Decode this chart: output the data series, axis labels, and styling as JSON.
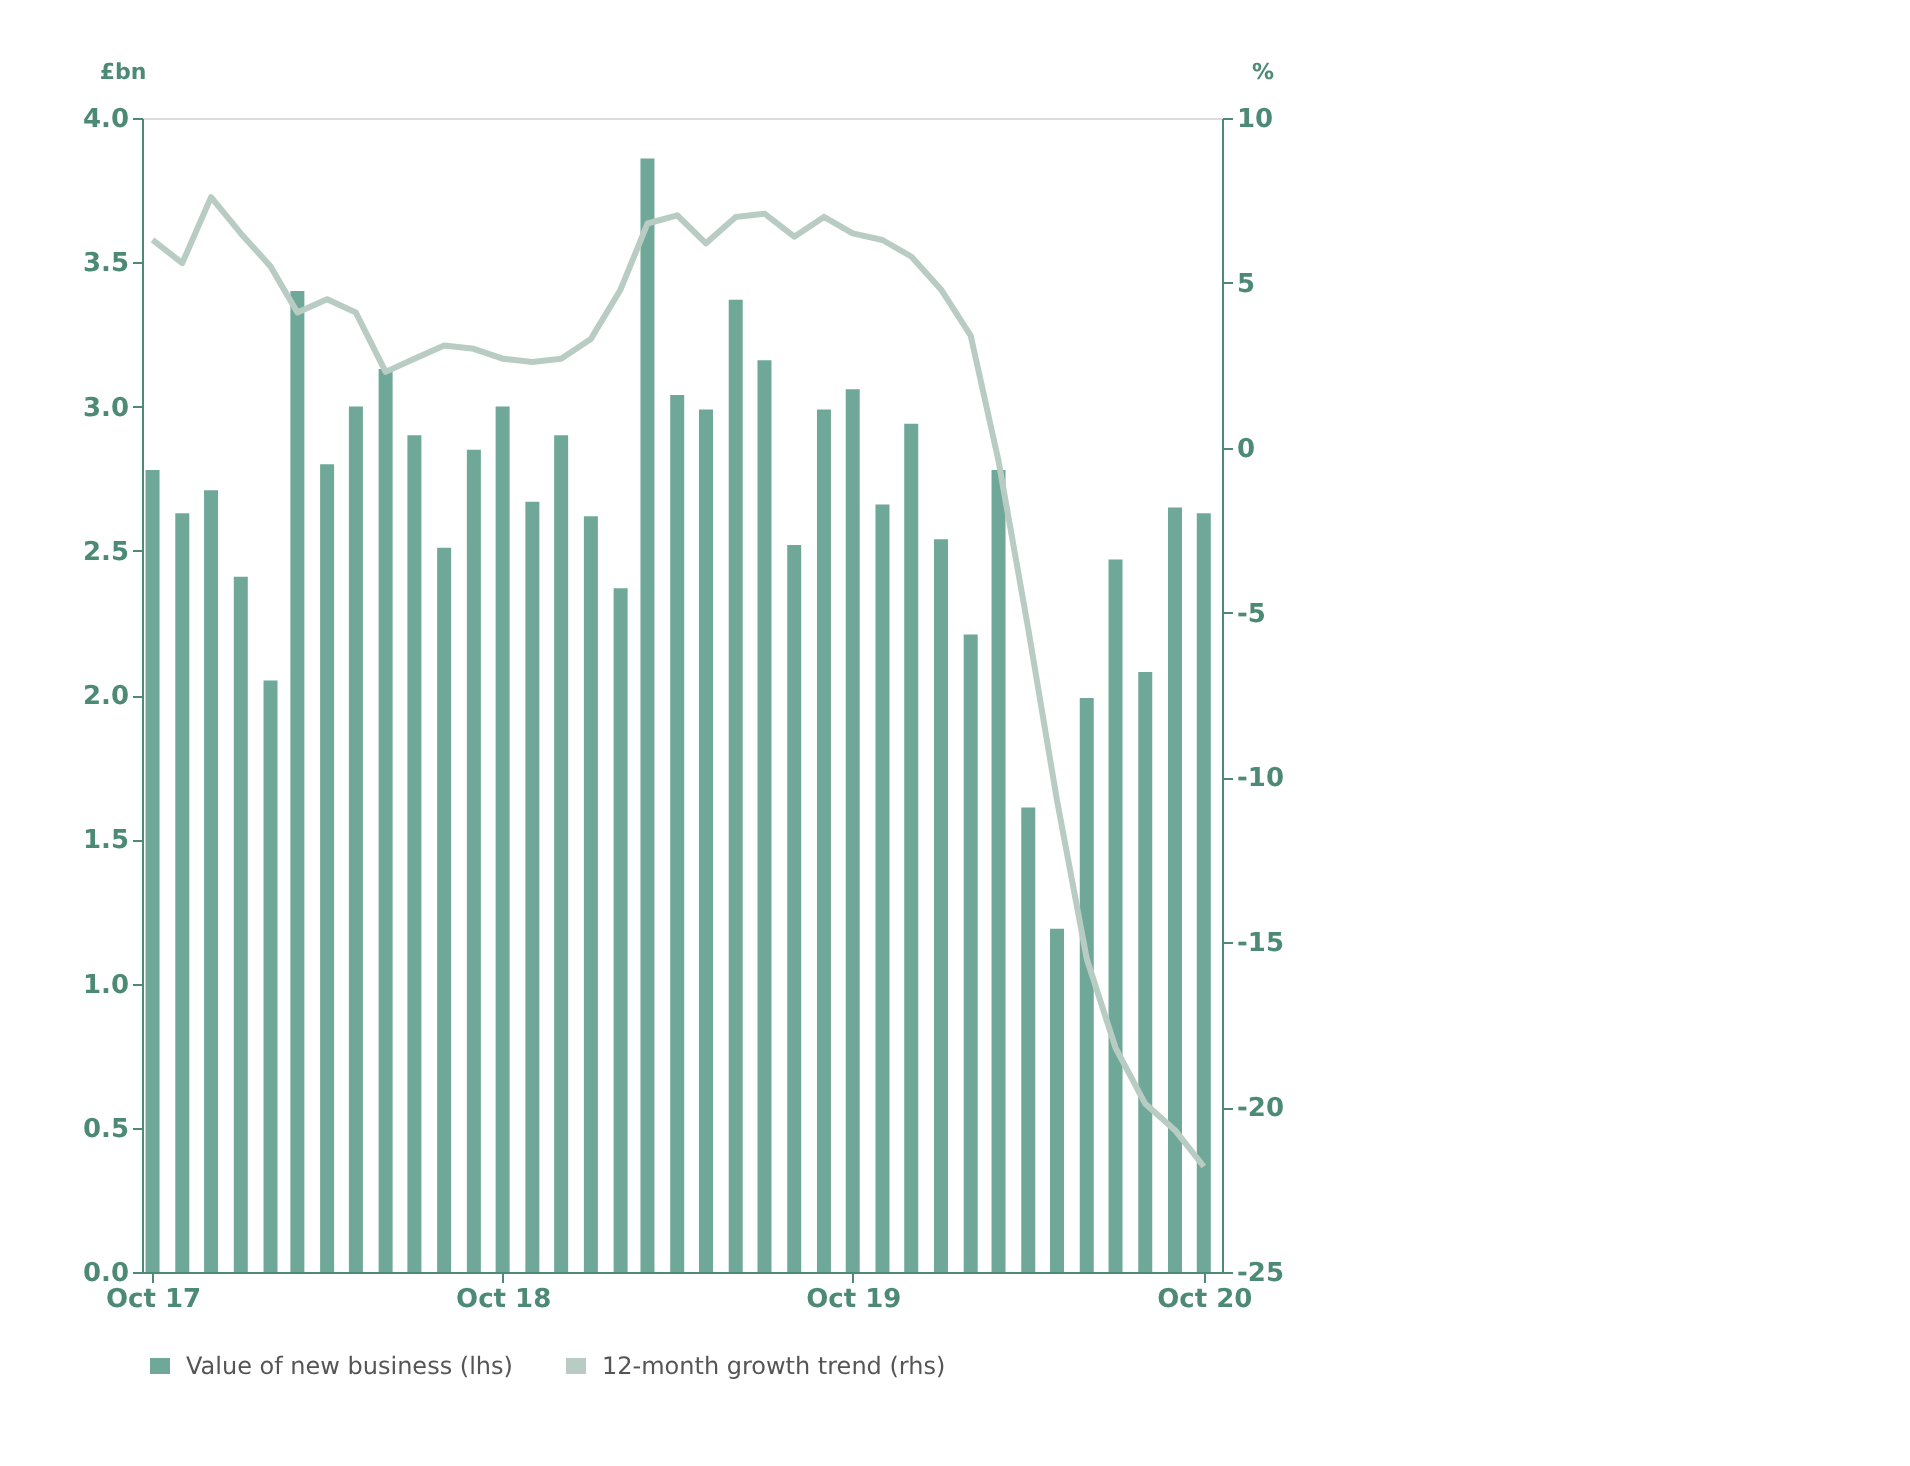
{
  "chart_data": {
    "type": "bar",
    "ylabel": "£bn",
    "y2label": "%",
    "x": [
      "2017-10",
      "2017-11",
      "2017-12",
      "2018-01",
      "2018-02",
      "2018-03",
      "2018-04",
      "2018-05",
      "2018-06",
      "2018-07",
      "2018-08",
      "2018-09",
      "2018-10",
      "2018-11",
      "2018-12",
      "2019-01",
      "2019-02",
      "2019-03",
      "2019-04",
      "2019-05",
      "2019-06",
      "2019-07",
      "2019-08",
      "2019-09",
      "2019-10",
      "2019-11",
      "2019-12",
      "2020-01",
      "2020-02",
      "2020-03",
      "2020-04",
      "2020-05",
      "2020-06",
      "2020-07",
      "2020-08",
      "2020-09",
      "2020-10"
    ],
    "series": [
      {
        "name": "Value of new business (lhs)",
        "color": "#6fa898",
        "values": [
          2.78,
          2.63,
          2.71,
          2.41,
          2.05,
          3.4,
          2.8,
          3.0,
          3.13,
          2.9,
          2.51,
          2.85,
          3.0,
          2.67,
          2.9,
          2.62,
          2.37,
          3.86,
          3.04,
          2.99,
          3.37,
          3.16,
          2.52,
          2.99,
          3.06,
          2.66,
          2.94,
          2.54,
          2.21,
          2.78,
          1.61,
          1.19,
          1.99,
          2.47,
          2.08,
          2.65,
          2.63
        ]
      },
      {
        "name": "12-month growth trend (rhs)",
        "type": "line",
        "axis": "y2",
        "color": "#b8ccc3",
        "values": [
          6.3,
          5.6,
          7.6,
          6.5,
          5.5,
          4.1,
          4.5,
          4.1,
          2.3,
          2.7,
          3.1,
          3.0,
          2.7,
          2.6,
          2.7,
          3.3,
          4.8,
          6.8,
          7.05,
          6.2,
          7.0,
          7.1,
          6.4,
          7.0,
          6.5,
          6.3,
          5.8,
          4.8,
          3.4,
          -0.4,
          -5.5,
          -10.7,
          -15.5,
          -18.2,
          -19.9,
          -20.7,
          -21.8
        ]
      }
    ],
    "xlim": [
      "2017-09-20",
      "2020-10-20"
    ],
    "xticks": [
      {
        "value": "2017-10",
        "label": "Oct 17"
      },
      {
        "value": "2018-10",
        "label": "Oct 18"
      },
      {
        "value": "2019-10",
        "label": "Oct 19"
      },
      {
        "value": "2020-10",
        "label": "Oct 20"
      }
    ],
    "ylim": [
      0,
      4
    ],
    "yticks": [
      {
        "value": 0,
        "label": "0.0"
      },
      {
        "value": 0.5,
        "label": "0.5"
      },
      {
        "value": 1,
        "label": "1.0"
      },
      {
        "value": 1.5,
        "label": "1.5"
      },
      {
        "value": 2,
        "label": "2.0"
      },
      {
        "value": 2.5,
        "label": "2.5"
      },
      {
        "value": 3,
        "label": "3.0"
      },
      {
        "value": 3.5,
        "label": "3.5"
      },
      {
        "value": 4,
        "label": "4.0"
      }
    ],
    "y2lim": [
      -25,
      10
    ],
    "y2ticks": [
      -25,
      -20,
      -15,
      -10,
      -5,
      0,
      5,
      10
    ],
    "grid": false,
    "legend": "bottom",
    "line_style": "solid",
    "marker": "none"
  }
}
